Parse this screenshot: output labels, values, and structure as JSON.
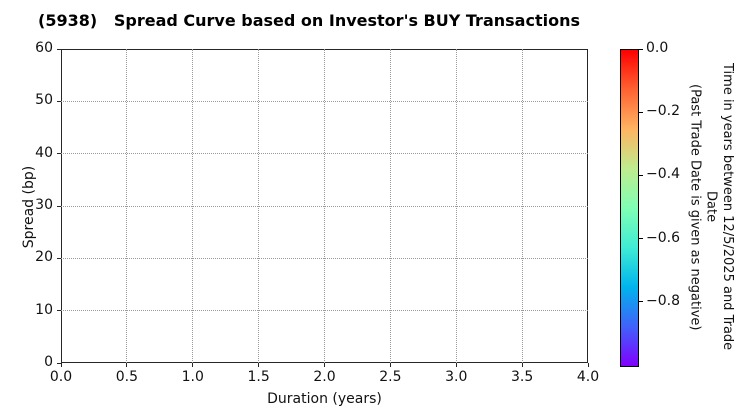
{
  "chart_data": {
    "type": "scatter",
    "title": "(5938)   Spread Curve based on Investor's BUY Transactions",
    "xlabel": "Duration (years)",
    "ylabel": "Spread (bp)",
    "xlim": [
      0.0,
      4.0
    ],
    "ylim": [
      0,
      60
    ],
    "x_tick_labels": [
      "0.0",
      "0.5",
      "1.0",
      "1.5",
      "2.0",
      "2.5",
      "3.0",
      "3.5",
      "4.0"
    ],
    "y_tick_labels": [
      "0",
      "10",
      "20",
      "30",
      "40",
      "50",
      "60"
    ],
    "grid": "dotted",
    "series": [],
    "note": "no data points plotted",
    "colorbar": {
      "label_line1": "Time in years between 12/5/2025 and Trade Date",
      "label_line2": "(Past Trade Date is given as negative)",
      "tick_labels": [
        "0.0",
        "−0.2",
        "−0.4",
        "−0.6",
        "−0.8"
      ],
      "range_top_to_bottom": [
        0.0,
        -1.0
      ],
      "colormap": "rainbow",
      "gradient_top_to_bottom": [
        "#ff0000",
        "#ff6232",
        "#ffb462",
        "#bfec8e",
        "#80ffb4",
        "#40ecd4",
        "#00b4ec",
        "#4062fa",
        "#8000ff"
      ]
    }
  }
}
